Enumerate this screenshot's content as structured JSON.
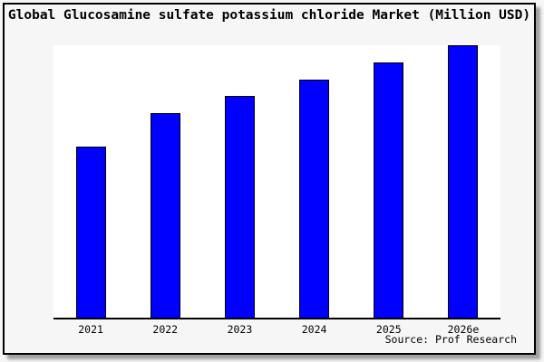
{
  "title": "Global Glucosamine sulfate potassium chloride Market (Million USD)",
  "source_credit": "Source: Prof Research",
  "colors": {
    "bar": "#0000ff",
    "bar_border": "#000000",
    "page_background": "#f6f6f6",
    "plot_background": "#ffffff",
    "frame_border": "#000000",
    "text": "#000000"
  },
  "chart_data": {
    "type": "bar",
    "title": "Global Glucosamine sulfate potassium chloride Market (Million USD)",
    "categories": [
      "2021",
      "2022",
      "2023",
      "2024",
      "2025",
      "2026e"
    ],
    "values": [
      62.8,
      75.2,
      81.4,
      87.4,
      93.7,
      100
    ],
    "values_note": "No y-axis or data labels shown; values estimated as percent of tallest (2026e) bar height",
    "xlabel": "",
    "ylabel": "",
    "ylim": [
      0,
      100
    ],
    "grid": false,
    "legend": null,
    "source": "Source: Prof Research"
  }
}
